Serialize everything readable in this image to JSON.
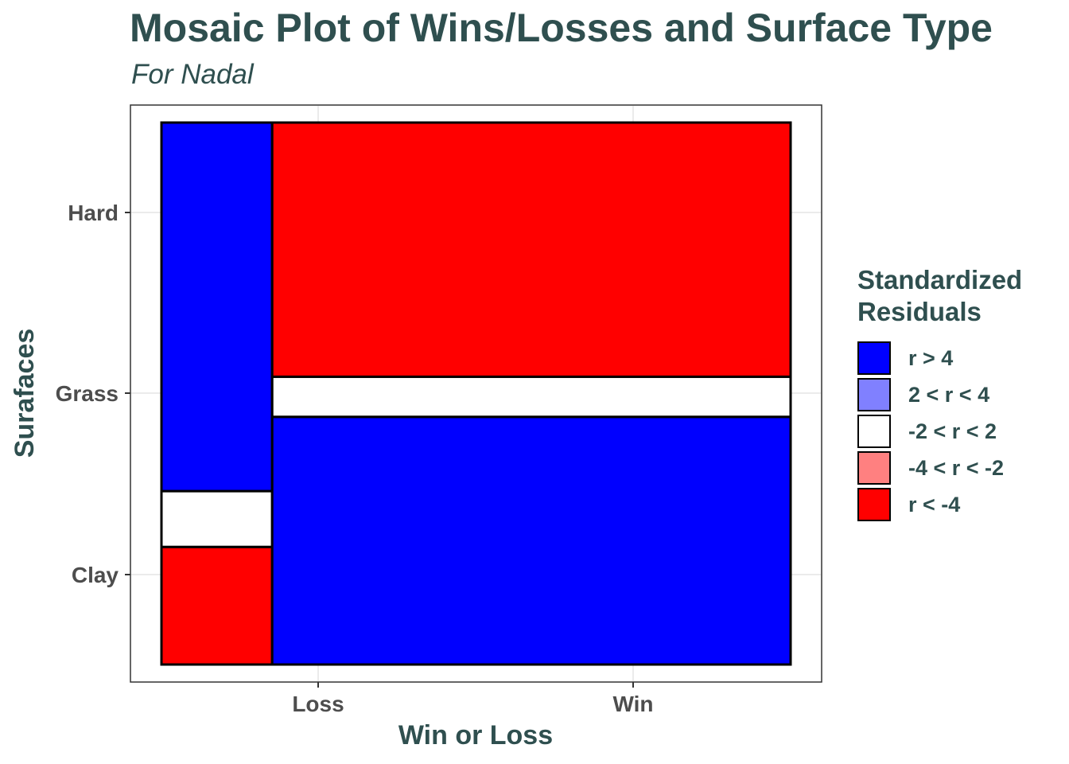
{
  "chart_data": {
    "type": "mosaic",
    "title": "Mosaic Plot of Wins/Losses and Surface Type",
    "subtitle": "For Nadal",
    "xlabel": "Win or Loss",
    "ylabel": "Surafaces",
    "x_categories": [
      "Loss",
      "Win"
    ],
    "y_categories": [
      "Clay",
      "Grass",
      "Hard"
    ],
    "x_proportions": {
      "Loss": 0.176,
      "Win": 0.824
    },
    "columns": [
      {
        "x": "Loss",
        "cells": [
          {
            "y": "Clay",
            "proportion": 0.217,
            "residual_class": "r < -4"
          },
          {
            "y": "Grass",
            "proportion": 0.103,
            "residual_class": "-2 < r < 2"
          },
          {
            "y": "Hard",
            "proportion": 0.68,
            "residual_class": "r > 4"
          }
        ]
      },
      {
        "x": "Win",
        "cells": [
          {
            "y": "Clay",
            "proportion": 0.457,
            "residual_class": "r > 4"
          },
          {
            "y": "Grass",
            "proportion": 0.074,
            "residual_class": "-2 < r < 2"
          },
          {
            "y": "Hard",
            "proportion": 0.469,
            "residual_class": "r < -4"
          }
        ]
      }
    ],
    "grid": true,
    "legend": {
      "title_line1": "Standardized",
      "title_line2": "Residuals",
      "placement": "right",
      "items": [
        {
          "label": "r > 4",
          "color": "#0000ff"
        },
        {
          "label": "2 < r < 4",
          "color": "#8080ff"
        },
        {
          "label": "-2 < r < 2",
          "color": "#ffffff"
        },
        {
          "label": "-4 < r < -2",
          "color": "#ff8080"
        },
        {
          "label": "r < -4",
          "color": "#ff0000"
        }
      ]
    }
  },
  "colors": {
    "text": "#2f4f4f",
    "tick_text": "#4d4d4d",
    "grid": "#ebebeb",
    "panel_border": "#333333"
  }
}
